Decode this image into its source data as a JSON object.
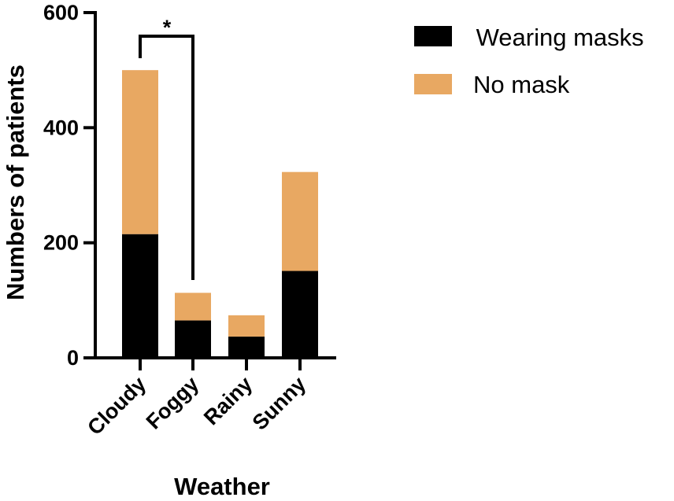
{
  "chart_data": {
    "type": "bar",
    "stacked": true,
    "categories": [
      "Cloudy",
      "Foggy",
      "Rainy",
      "Sunny"
    ],
    "series": [
      {
        "name": "Wearing masks",
        "color": "#000000",
        "values": [
          215,
          65,
          37,
          151
        ]
      },
      {
        "name": "No mask",
        "color": "#E8A862",
        "values": [
          285,
          48,
          37,
          172
        ]
      }
    ],
    "title": "",
    "xlabel": "Weather",
    "ylabel": "Numbers of patients",
    "ylim": [
      0,
      600
    ],
    "yticks": [
      "0",
      "200",
      "400",
      "600"
    ],
    "legend": {
      "placement": "top-right",
      "entries": [
        {
          "label": " Wearing masks",
          "color": "#000000"
        },
        {
          "label": "No mask",
          "color": "#E8A862"
        }
      ]
    },
    "annotations": [
      {
        "text": "*",
        "between": [
          "Cloudy",
          "Foggy"
        ]
      }
    ],
    "grid": false
  }
}
